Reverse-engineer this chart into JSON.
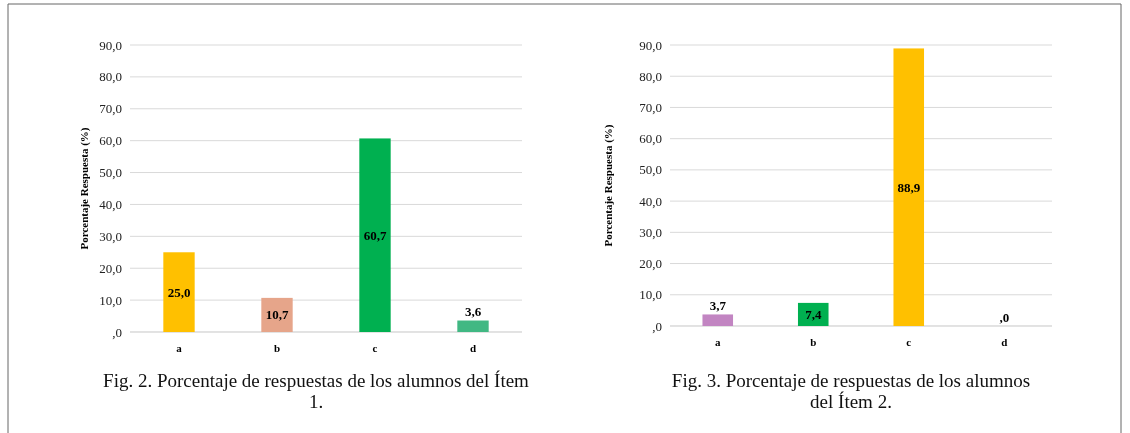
{
  "chart_data": [
    {
      "type": "bar",
      "title": "Fig. 2. Porcentaje de respuestas de los alumnos del Ítem 1.",
      "ylabel": "Porcentaje Respuesta (%)",
      "categories": [
        "a",
        "b",
        "c",
        "d"
      ],
      "values": [
        25.0,
        10.7,
        60.7,
        3.6
      ],
      "colors": [
        "#ffc000",
        "#e6a58a",
        "#00b050",
        "#41b883"
      ],
      "value_labels": [
        "25,0",
        "10,7",
        "60,7",
        "3,6"
      ],
      "ylim": [
        0,
        90
      ],
      "yticks": [
        {
          "value": 0,
          "label": ",0"
        },
        {
          "value": 10,
          "label": "10,0"
        },
        {
          "value": 20,
          "label": "20,0"
        },
        {
          "value": 30,
          "label": "30,0"
        },
        {
          "value": 40,
          "label": "40,0"
        },
        {
          "value": 50,
          "label": "50,0"
        },
        {
          "value": 60,
          "label": "60,0"
        },
        {
          "value": 70,
          "label": "70,0"
        },
        {
          "value": 80,
          "label": "80,0"
        },
        {
          "value": 90,
          "label": "90,0"
        }
      ],
      "grid": "y"
    },
    {
      "type": "bar",
      "title": "Fig. 3. Porcentaje de respuestas de los alumnos del Ítem 2.",
      "ylabel": "Porcentaje Respuesta (%)",
      "categories": [
        "a",
        "b",
        "c",
        "d"
      ],
      "values": [
        3.7,
        7.4,
        88.9,
        0.0
      ],
      "colors": [
        "#c285c2",
        "#00b050",
        "#ffc000",
        "#5b9bd5"
      ],
      "value_labels": [
        "3,7",
        "7,4",
        "88,9",
        ",0"
      ],
      "ylim": [
        0,
        90
      ],
      "yticks": [
        {
          "value": 0,
          "label": ",0"
        },
        {
          "value": 10,
          "label": "10,0"
        },
        {
          "value": 20,
          "label": "20,0"
        },
        {
          "value": 30,
          "label": "30,0"
        },
        {
          "value": 40,
          "label": "40,0"
        },
        {
          "value": 50,
          "label": "50,0"
        },
        {
          "value": 60,
          "label": "60,0"
        },
        {
          "value": 70,
          "label": "70,0"
        },
        {
          "value": 80,
          "label": "80,0"
        },
        {
          "value": 90,
          "label": "90,0"
        }
      ],
      "grid": "y"
    }
  ]
}
